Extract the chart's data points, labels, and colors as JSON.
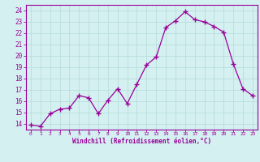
{
  "x": [
    0,
    1,
    2,
    3,
    4,
    5,
    6,
    7,
    8,
    9,
    10,
    11,
    12,
    13,
    14,
    15,
    16,
    17,
    18,
    19,
    20,
    21,
    22,
    23
  ],
  "y": [
    13.9,
    13.8,
    14.9,
    15.3,
    15.4,
    16.5,
    16.3,
    14.9,
    16.1,
    17.1,
    15.8,
    17.5,
    19.2,
    19.9,
    22.5,
    23.1,
    23.9,
    23.2,
    23.0,
    22.6,
    22.1,
    19.3,
    17.1,
    16.5
  ],
  "line_color": "#990099",
  "marker": "+",
  "marker_size": 4,
  "bg_color": "#d4f0f0",
  "grid_color": "#b8dede",
  "xlabel": "Windchill (Refroidissement éolien,°C)",
  "xlabel_color": "#990099",
  "tick_color": "#990099",
  "label_color": "#990099",
  "ylim": [
    13.5,
    24.5
  ],
  "xlim": [
    -0.5,
    23.5
  ],
  "yticks": [
    14,
    15,
    16,
    17,
    18,
    19,
    20,
    21,
    22,
    23,
    24
  ],
  "xticks": [
    0,
    1,
    2,
    3,
    4,
    5,
    6,
    7,
    8,
    9,
    10,
    11,
    12,
    13,
    14,
    15,
    16,
    17,
    18,
    19,
    20,
    21,
    22,
    23
  ],
  "spine_color": "#990099"
}
